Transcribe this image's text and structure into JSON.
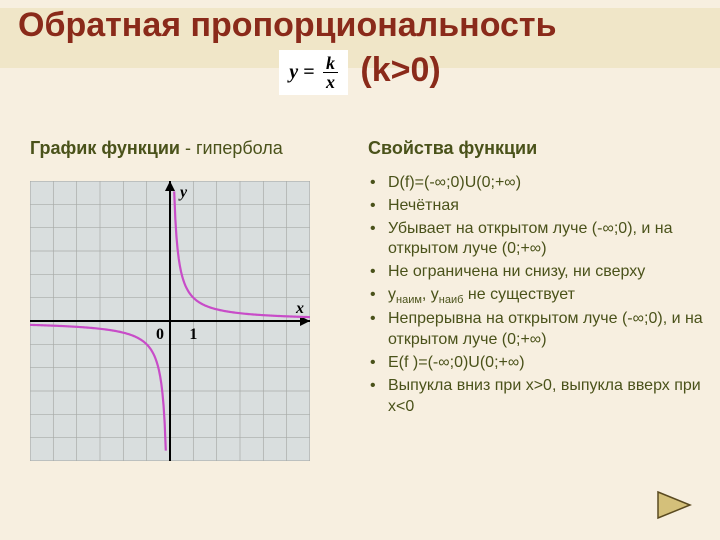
{
  "title": "Обратная пропорциональность",
  "formula": {
    "lhs": "y =",
    "num": "k",
    "den": "x"
  },
  "condition": "(k>0)",
  "leftTitleBold": "График функции",
  "leftTitleRest": " - гипербола",
  "rightTitle": "Свойства функции",
  "props": [
    "D(f)=(-∞;0)U(0;+∞)",
    "Нечётная",
    "Убывает на открытом луче (-∞;0), и на открытом луче (0;+∞)",
    "Не ограничена ни снизу, ни сверху",
    null,
    "Непрерывна на открытом луче (-∞;0), и на открытом луче (0;+∞)",
    "E(f )=(-∞;0)U(0;+∞)",
    "Выпукла вниз при x>0, выпукла вверх при x<0"
  ],
  "prop5": {
    "part1": "y",
    "sub1": "наим",
    "part2": ", y",
    "sub2": "наиб",
    "part3": "  не существует"
  },
  "chart": {
    "bg": "#d9dede",
    "grid": "#a8aba8",
    "axis": "#000000",
    "curve": "#c84cc8",
    "label_y": "y",
    "label_x": "x",
    "label_0": "0",
    "label_1": "1",
    "cells": 12,
    "k": 1.0
  },
  "nav": {
    "fill": "#d4c07a",
    "stroke": "#5a4a20"
  }
}
